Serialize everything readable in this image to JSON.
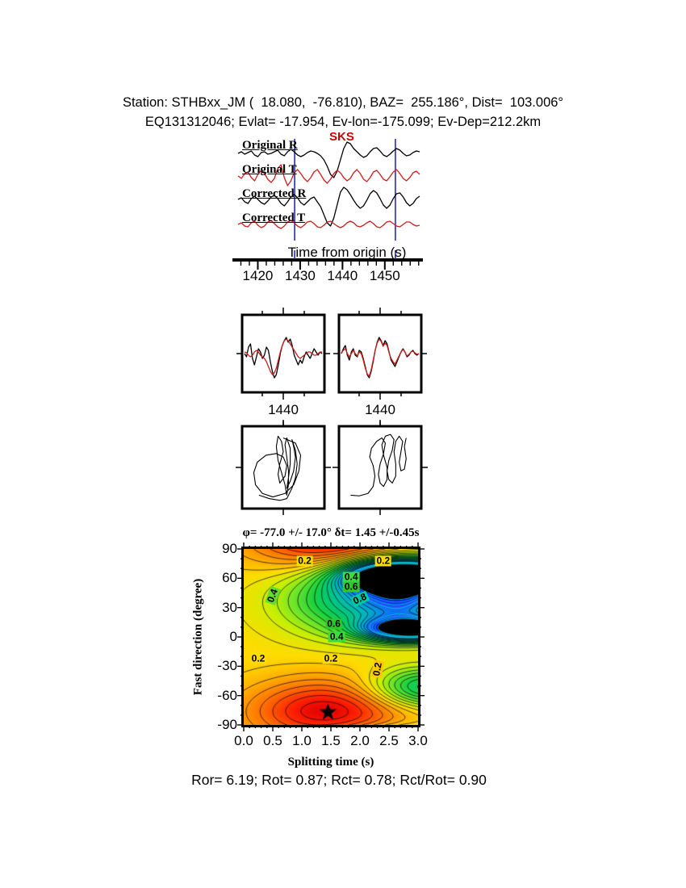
{
  "header": {
    "line1": "Station: STHBxx_JM (  18.080,  -76.810), BAZ=  255.186°, Dist=  103.006°",
    "line2": "EQ131312046; Evlat= -17.954, Ev-lon=-175.099; Ev-Dep=212.2km"
  },
  "footer": {
    "stats": "Ror= 6.19; Rot= 0.87; Rct= 0.78; Rct/Rot= 0.90"
  },
  "colors": {
    "trace_black": "#000000",
    "trace_red": "#cc1e1e",
    "window_line": "#2a2ab4",
    "phase_label": "#cc0000",
    "contour_line": "#000000",
    "contour_line_dark_bg": "#00e6c8"
  },
  "chart_data": {
    "type": "composite",
    "trace_plot": {
      "type": "line",
      "xlabel": "Time from origin (s)",
      "x_range": [
        1414,
        1459
      ],
      "x_majors": [
        1420,
        1430,
        1440,
        1450
      ],
      "x_minor_step": 2,
      "phase_label": "SKS",
      "phase_time": 1438,
      "window_times": [
        1428.7,
        1452.5
      ],
      "series": [
        {
          "name": "Original R",
          "color": "black",
          "values": [
            0,
            2,
            -1,
            1,
            3,
            -2,
            -4,
            1,
            2,
            -1,
            0,
            2,
            4,
            -1,
            -3,
            2,
            5,
            2,
            -2,
            -4,
            -2,
            1,
            3,
            2,
            0,
            -3,
            -8,
            -16,
            -26,
            -30,
            -22,
            -8,
            6,
            14,
            12,
            6,
            2,
            -2,
            -5,
            -3,
            2,
            6,
            7,
            3,
            -2,
            -4,
            -1,
            3,
            6,
            4,
            0,
            -3,
            -2,
            1,
            3,
            2
          ]
        },
        {
          "name": "Original T",
          "color": "red",
          "values": [
            0,
            -3,
            3,
            5,
            -2,
            -6,
            2,
            7,
            3,
            -4,
            -8,
            -3,
            9,
            14,
            -2,
            -12,
            -6,
            4,
            8,
            3,
            -3,
            -7,
            -2,
            5,
            8,
            2,
            -5,
            -9,
            -4,
            3,
            7,
            4,
            -2,
            -6,
            -3,
            4,
            8,
            3,
            -4,
            -7,
            -2,
            5,
            7,
            2,
            -4,
            -6,
            -1,
            5,
            8,
            3,
            -3,
            -6,
            -2,
            4,
            6,
            2
          ]
        },
        {
          "name": "Corrected R",
          "color": "black",
          "values": [
            1,
            3,
            -2,
            -4,
            2,
            5,
            1,
            -3,
            -5,
            -1,
            4,
            6,
            2,
            -4,
            -7,
            -2,
            4,
            7,
            3,
            -3,
            -6,
            -2,
            2,
            4,
            -2,
            -8,
            -18,
            -28,
            -32,
            -22,
            -6,
            10,
            16,
            13,
            7,
            0,
            -6,
            -10,
            -7,
            0,
            8,
            12,
            9,
            2,
            -6,
            -10,
            -6,
            2,
            8,
            9,
            4,
            -3,
            -7,
            -4,
            2,
            5
          ]
        },
        {
          "name": "Corrected T",
          "color": "red",
          "values": [
            0,
            2,
            -2,
            -3,
            2,
            4,
            -1,
            -4,
            -2,
            3,
            5,
            1,
            -3,
            -5,
            -2,
            3,
            5,
            2,
            -2,
            -4,
            -1,
            3,
            4,
            1,
            -3,
            -4,
            -1,
            3,
            4,
            1,
            -2,
            -4,
            -2,
            2,
            4,
            2,
            -2,
            -3,
            -1,
            2,
            4,
            1,
            -3,
            -4,
            -1,
            3,
            4,
            1,
            -2,
            -3,
            0,
            3,
            3,
            0,
            -2,
            -1
          ]
        }
      ]
    },
    "window_boxes": {
      "type": "line",
      "xlabel": "1440",
      "boxes": [
        {
          "series": [
            {
              "color": "black",
              "values": [
                0,
                -4,
                8,
                12,
                -6,
                -14,
                -4,
                6,
                2,
                -6,
                -2,
                8,
                4,
                -10,
                -22,
                -30,
                -26,
                -14,
                0,
                10,
                16,
                20,
                14,
                18,
                10,
                -2,
                -8,
                -14,
                -8,
                -12,
                -4,
                2,
                -2,
                -6,
                0,
                6,
                2,
                -2,
                2,
                0
              ]
            },
            {
              "color": "red",
              "values": [
                2,
                1,
                -2,
                -4,
                -2,
                2,
                4,
                2,
                -2,
                -4,
                -6,
                -10,
                -16,
                -22,
                -26,
                -24,
                -18,
                -8,
                2,
                10,
                16,
                18,
                16,
                12,
                8,
                4,
                0,
                -4,
                -6,
                -4,
                -2,
                0,
                2,
                2,
                0,
                -2,
                -2,
                0,
                2,
                2
              ]
            }
          ]
        },
        {
          "series": [
            {
              "color": "black",
              "values": [
                0,
                6,
                10,
                -2,
                -8,
                2,
                6,
                -2,
                -4,
                4,
                2,
                -6,
                -16,
                -26,
                -30,
                -22,
                -10,
                4,
                14,
                20,
                16,
                10,
                16,
                12,
                2,
                -8,
                -12,
                -16,
                -10,
                -4,
                2,
                6,
                2,
                -4,
                -2,
                2,
                4,
                0,
                -2,
                0
              ]
            },
            {
              "color": "red",
              "values": [
                1,
                4,
                6,
                0,
                -4,
                0,
                4,
                0,
                -3,
                2,
                0,
                -8,
                -18,
                -25,
                -28,
                -20,
                -8,
                4,
                13,
                18,
                15,
                9,
                13,
                10,
                1,
                -6,
                -10,
                -13,
                -8,
                -3,
                2,
                5,
                2,
                -3,
                -1,
                2,
                3,
                1,
                -1,
                0
              ]
            }
          ]
        }
      ]
    },
    "pm_boxes": {
      "type": "particle-motion",
      "boxes": [
        {
          "points": [
            [
              0.0,
              0.85
            ],
            [
              0.35,
              0.7
            ],
            [
              0.5,
              0.35
            ],
            [
              0.45,
              -0.1
            ],
            [
              0.3,
              -0.5
            ],
            [
              0.05,
              -0.75
            ],
            [
              -0.3,
              -0.85
            ],
            [
              -0.6,
              -0.75
            ],
            [
              -0.8,
              -0.5
            ],
            [
              -0.85,
              -0.15
            ],
            [
              -0.75,
              0.15
            ],
            [
              -0.5,
              0.35
            ],
            [
              -0.2,
              0.4
            ],
            [
              0.0,
              0.3
            ],
            [
              0.1,
              0.05
            ],
            [
              0.05,
              -0.25
            ],
            [
              -0.1,
              -0.45
            ],
            [
              -0.15,
              -0.2
            ],
            [
              -0.1,
              0.1
            ],
            [
              0.0,
              0.45
            ],
            [
              -0.05,
              0.75
            ],
            [
              -0.15,
              0.9
            ],
            [
              -0.2,
              0.6
            ],
            [
              -0.15,
              0.2
            ],
            [
              -0.05,
              -0.15
            ],
            [
              0.05,
              -0.5
            ],
            [
              0.1,
              -0.8
            ],
            [
              0.15,
              -0.5
            ],
            [
              0.15,
              -0.1
            ],
            [
              0.1,
              0.3
            ],
            [
              0.05,
              0.65
            ],
            [
              0.1,
              0.85
            ],
            [
              0.2,
              0.55
            ],
            [
              0.2,
              0.1
            ],
            [
              0.15,
              -0.3
            ],
            [
              0.1,
              -0.6
            ],
            [
              0.2,
              -0.4
            ],
            [
              0.3,
              -0.1
            ],
            [
              0.35,
              0.3
            ],
            [
              0.3,
              0.6
            ],
            [
              0.25,
              0.8
            ],
            [
              0.35,
              0.5
            ],
            [
              0.4,
              0.1
            ],
            [
              0.35,
              -0.3
            ],
            [
              0.25,
              -0.6
            ],
            [
              0.1,
              -0.9
            ],
            [
              -0.1,
              -0.95
            ],
            [
              -0.4,
              -0.9
            ],
            [
              -0.7,
              -0.8
            ]
          ]
        },
        {
          "points": [
            [
              -0.85,
              -0.8
            ],
            [
              -0.6,
              -0.82
            ],
            [
              -0.35,
              -0.75
            ],
            [
              -0.2,
              -0.55
            ],
            [
              -0.15,
              -0.25
            ],
            [
              -0.2,
              0.05
            ],
            [
              -0.3,
              0.3
            ],
            [
              -0.25,
              0.55
            ],
            [
              -0.1,
              0.75
            ],
            [
              0.05,
              0.85
            ],
            [
              0.15,
              0.7
            ],
            [
              0.1,
              0.4
            ],
            [
              0.0,
              0.1
            ],
            [
              -0.05,
              -0.2
            ],
            [
              0.0,
              -0.45
            ],
            [
              0.1,
              -0.55
            ],
            [
              0.2,
              -0.35
            ],
            [
              0.2,
              0.0
            ],
            [
              0.1,
              0.35
            ],
            [
              0.05,
              0.65
            ],
            [
              0.15,
              0.9
            ],
            [
              0.3,
              0.95
            ],
            [
              0.4,
              0.8
            ],
            [
              0.35,
              0.5
            ],
            [
              0.25,
              0.2
            ],
            [
              0.2,
              -0.1
            ],
            [
              0.25,
              -0.35
            ],
            [
              0.35,
              -0.45
            ],
            [
              0.45,
              -0.25
            ],
            [
              0.45,
              0.1
            ],
            [
              0.4,
              0.45
            ],
            [
              0.45,
              0.75
            ],
            [
              0.55,
              0.9
            ],
            [
              0.65,
              0.75
            ],
            [
              0.6,
              0.45
            ],
            [
              0.55,
              0.15
            ],
            [
              0.6,
              -0.1
            ],
            [
              0.7,
              -0.05
            ],
            [
              0.75,
              0.25
            ],
            [
              0.7,
              0.6
            ],
            [
              0.75,
              0.85
            ]
          ]
        }
      ]
    },
    "contour": {
      "type": "heatmap",
      "title": "φ= -77.0 +/- 17.0° δt= 1.45 +/-0.45s",
      "xlabel": "Splitting time (s)",
      "ylabel": "Fast direction (degree)",
      "x_range": [
        0.0,
        3.0
      ],
      "y_range": [
        -90,
        90
      ],
      "x_majors": [
        0,
        0.5,
        1,
        1.5,
        2,
        2.5,
        3
      ],
      "x_major_labels": [
        "0.0",
        "0.5",
        "1.0",
        "1.5",
        "2.0",
        "2.5",
        "3.0"
      ],
      "x_minor_step": 0.1,
      "y_majors": [
        -90,
        -60,
        -30,
        0,
        30,
        60,
        90
      ],
      "y_major_labels": [
        "-90",
        "-60",
        "-30",
        "0",
        "30",
        "60",
        "90"
      ],
      "y_minor_step": 10,
      "best_fit": {
        "dt": 1.45,
        "dt_err": 0.45,
        "phi": -77.0,
        "phi_err": 17.0
      },
      "surface": {
        "base": 0.3,
        "bumps": [
          {
            "x": 1.45,
            "y": -77,
            "sx": 1.35,
            "sy": 33,
            "a": -0.3
          },
          {
            "x": 2.75,
            "y": 62,
            "sx": 0.9,
            "sy": 16,
            "a": 1.3
          },
          {
            "x": 2.9,
            "y": 8,
            "sx": 0.8,
            "sy": 12,
            "a": 0.9
          },
          {
            "x": 2.8,
            "y": 35,
            "sx": 0.75,
            "sy": 18,
            "a": 0.35
          },
          {
            "x": 1.9,
            "y": 38,
            "sx": 1.2,
            "sy": 35,
            "a": 0.35
          },
          {
            "x": 3.1,
            "y": -52,
            "sx": 0.9,
            "sy": 20,
            "a": 0.35
          }
        ]
      },
      "colormap": [
        [
          0,
          "#dc0000"
        ],
        [
          0.06,
          "#ff1e00"
        ],
        [
          0.14,
          "#ff6400"
        ],
        [
          0.22,
          "#ffa000"
        ],
        [
          0.3,
          "#ffdc00"
        ],
        [
          0.38,
          "#c8f000"
        ],
        [
          0.46,
          "#6ee62a"
        ],
        [
          0.55,
          "#1ed23c"
        ],
        [
          0.64,
          "#00c878"
        ],
        [
          0.73,
          "#00b9b9"
        ],
        [
          0.82,
          "#0096e6"
        ],
        [
          0.9,
          "#1e50ff"
        ],
        [
          1,
          "#0000dc"
        ],
        [
          1.01,
          "#000000"
        ]
      ],
      "contour_levels": {
        "start": 0.04,
        "step": 0.04,
        "end": 1.0
      },
      "contour_labels": [
        {
          "x": 1.05,
          "y": 78,
          "t": "0.2",
          "bg": "#ffdc00",
          "rot": 0
        },
        {
          "x": 2.4,
          "y": 78,
          "t": "0.2",
          "bg": "#ffdc00",
          "rot": 0
        },
        {
          "x": 1.85,
          "y": 61,
          "t": "0.4",
          "bg": "#3cdc3c",
          "rot": 0
        },
        {
          "x": 1.85,
          "y": 51,
          "t": "0.6",
          "bg": "#2ec82e",
          "rot": 0
        },
        {
          "x": 2.0,
          "y": 39,
          "t": "0.8",
          "bg": "#00c8a0",
          "rot": -25
        },
        {
          "x": 1.55,
          "y": 13,
          "t": "0.6",
          "bg": "#2ec82e",
          "rot": 0
        },
        {
          "x": 1.6,
          "y": 0,
          "t": "0.4",
          "bg": "#3cdc3c",
          "rot": 0
        },
        {
          "x": 0.25,
          "y": -22,
          "t": "0.2",
          "bg": "#ffdc00",
          "rot": 0
        },
        {
          "x": 1.5,
          "y": -22,
          "t": "0.2",
          "bg": "#ffdc00",
          "rot": 0
        },
        {
          "x": 0.5,
          "y": 42,
          "t": "0.4",
          "bg": "#64dc32",
          "rot": -70
        },
        {
          "x": 2.3,
          "y": -33,
          "t": "0.2",
          "bg": "#ffc800",
          "rot": -80
        }
      ]
    }
  }
}
